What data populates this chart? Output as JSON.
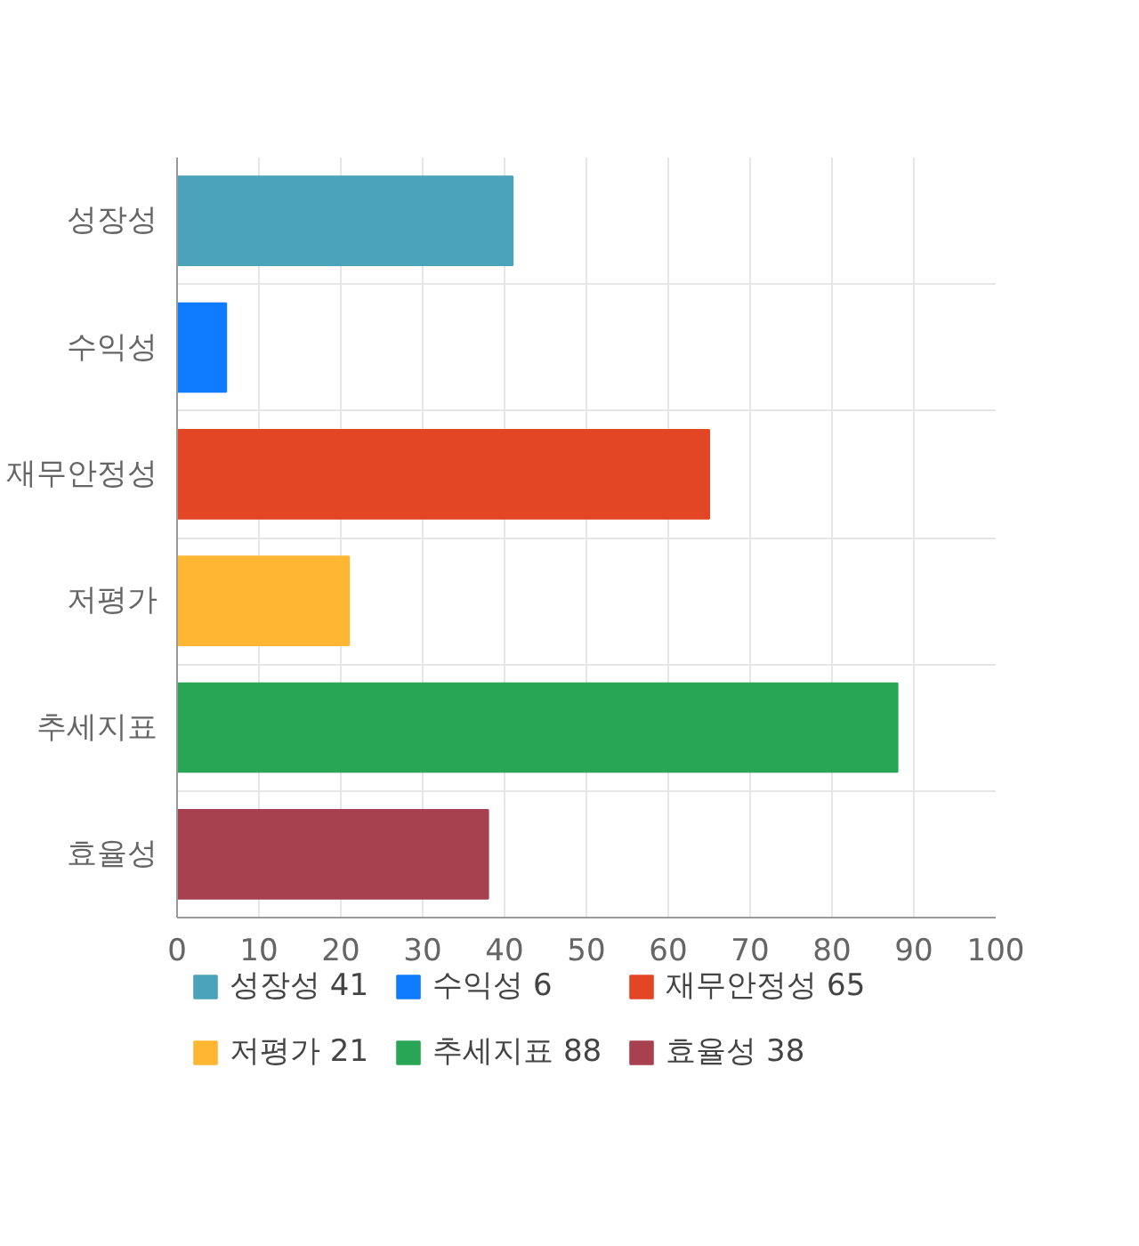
{
  "chart_data": {
    "type": "bar",
    "orientation": "horizontal",
    "categories": [
      "성장성",
      "수익성",
      "재무안정성",
      "저평가",
      "추세지표",
      "효율성"
    ],
    "series": [
      {
        "name": "성장성 41",
        "color": "#4aa3bb",
        "values": [
          41,
          null,
          null,
          null,
          null,
          null
        ]
      },
      {
        "name": "수익성 6",
        "color": "#0f7bff",
        "values": [
          null,
          6,
          null,
          null,
          null,
          null
        ]
      },
      {
        "name": "재무안정성 65",
        "color": "#e24624",
        "values": [
          null,
          null,
          65,
          null,
          null,
          null
        ]
      },
      {
        "name": "저평가 21",
        "color": "#ffb733",
        "values": [
          null,
          null,
          null,
          21,
          null,
          null
        ]
      },
      {
        "name": "추세지표 88",
        "color": "#29a655",
        "values": [
          null,
          null,
          null,
          null,
          88,
          null
        ]
      },
      {
        "name": "효율성 38",
        "color": "#a8414f",
        "values": [
          null,
          null,
          null,
          null,
          null,
          38
        ]
      }
    ],
    "xlim": [
      0,
      100
    ],
    "xticks": [
      0,
      10,
      20,
      30,
      40,
      50,
      60,
      70,
      80,
      90,
      100
    ],
    "grid": true,
    "legend": "bottom"
  }
}
